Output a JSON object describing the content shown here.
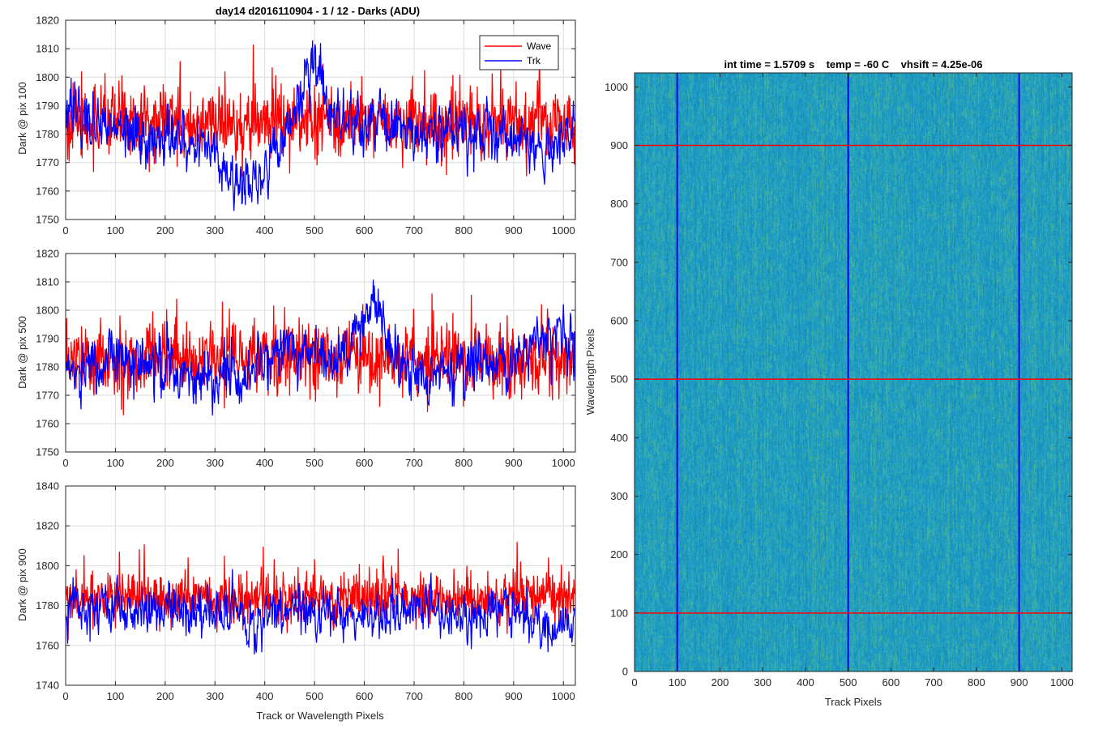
{
  "figure_title": "day14 d2016110904 - 1 / 12 - Darks (ADU)",
  "colors": {
    "wave": "#ff0000",
    "trk": "#0000ff",
    "grid": "#dcdcdc",
    "axis": "#262626"
  },
  "chart_data": [
    {
      "type": "line",
      "id": "panel-1",
      "ylabel": "Dark @ pix 100",
      "xlim": [
        0,
        1024
      ],
      "ylim": [
        1750,
        1820
      ],
      "xticks": [
        "0",
        "100",
        "200",
        "300",
        "400",
        "500",
        "600",
        "700",
        "800",
        "900",
        "1000"
      ],
      "yticks": [
        "1750",
        "1760",
        "1770",
        "1780",
        "1790",
        "1800",
        "1810",
        "1820"
      ],
      "grid": true,
      "legend": {
        "placement": "top-right",
        "entries": [
          "Wave",
          "Trk"
        ]
      },
      "series": [
        {
          "name": "Wave",
          "points": 1024,
          "mean": 1784,
          "noise_amp": 8,
          "trend": [
            [
              0,
              0
            ],
            [
              1024,
              0
            ]
          ]
        },
        {
          "name": "Trk",
          "points": 1024,
          "mean": 1783,
          "noise_amp": 5,
          "trend": [
            [
              0,
              4
            ],
            [
              100,
              0
            ],
            [
              160,
              -6
            ],
            [
              220,
              -4
            ],
            [
              280,
              -10
            ],
            [
              340,
              -20
            ],
            [
              390,
              -18
            ],
            [
              430,
              -6
            ],
            [
              470,
              8
            ],
            [
              500,
              22
            ],
            [
              530,
              10
            ],
            [
              560,
              2
            ],
            [
              640,
              0
            ],
            [
              700,
              -2
            ],
            [
              800,
              -2
            ],
            [
              900,
              -4
            ],
            [
              960,
              -8
            ],
            [
              1024,
              -2
            ]
          ]
        }
      ]
    },
    {
      "type": "line",
      "id": "panel-2",
      "ylabel": "Dark @ pix 500",
      "xlim": [
        0,
        1024
      ],
      "ylim": [
        1750,
        1820
      ],
      "xticks": [
        "0",
        "100",
        "200",
        "300",
        "400",
        "500",
        "600",
        "700",
        "800",
        "900",
        "1000"
      ],
      "yticks": [
        "1750",
        "1760",
        "1770",
        "1780",
        "1790",
        "1800",
        "1810",
        "1820"
      ],
      "grid": true,
      "series": [
        {
          "name": "Wave",
          "points": 1024,
          "mean": 1783,
          "noise_amp": 8,
          "trend": [
            [
              0,
              0
            ],
            [
              1024,
              0
            ]
          ]
        },
        {
          "name": "Trk",
          "points": 1024,
          "mean": 1781,
          "noise_amp": 5,
          "trend": [
            [
              0,
              -6
            ],
            [
              120,
              4
            ],
            [
              200,
              -2
            ],
            [
              300,
              -8
            ],
            [
              380,
              -4
            ],
            [
              440,
              6
            ],
            [
              520,
              0
            ],
            [
              580,
              8
            ],
            [
              620,
              22
            ],
            [
              660,
              4
            ],
            [
              720,
              -6
            ],
            [
              800,
              -2
            ],
            [
              880,
              2
            ],
            [
              950,
              8
            ],
            [
              1024,
              6
            ]
          ]
        }
      ]
    },
    {
      "type": "line",
      "id": "panel-3",
      "ylabel": "Dark @ pix 900",
      "xlabel": "Track or Wavelength Pixels",
      "xlim": [
        0,
        1024
      ],
      "ylim": [
        1740,
        1840
      ],
      "xticks": [
        "0",
        "100",
        "200",
        "300",
        "400",
        "500",
        "600",
        "700",
        "800",
        "900",
        "1000"
      ],
      "yticks": [
        "1740",
        "1760",
        "1780",
        "1800",
        "1820",
        "1840"
      ],
      "grid": true,
      "series": [
        {
          "name": "Wave",
          "points": 1024,
          "mean": 1784,
          "noise_amp": 8,
          "trend": [
            [
              0,
              0
            ],
            [
              1024,
              0
            ]
          ]
        },
        {
          "name": "Trk",
          "points": 1024,
          "mean": 1779,
          "noise_amp": 6,
          "trend": [
            [
              0,
              0
            ],
            [
              200,
              0
            ],
            [
              300,
              -2
            ],
            [
              380,
              -6
            ],
            [
              460,
              2
            ],
            [
              540,
              -4
            ],
            [
              620,
              -6
            ],
            [
              700,
              0
            ],
            [
              800,
              -4
            ],
            [
              900,
              -2
            ],
            [
              960,
              -10
            ],
            [
              1024,
              -6
            ]
          ]
        }
      ]
    },
    {
      "type": "heatmap",
      "id": "image-panel",
      "title": "int time = 1.5709 s    temp = -60 C    vhsift = 4.25e-06",
      "xlabel": "Track Pixels",
      "ylabel": "Wavelength Pixels",
      "xlim": [
        0,
        1024
      ],
      "ylim": [
        0,
        1024
      ],
      "xticks": [
        "0",
        "100",
        "200",
        "300",
        "400",
        "500",
        "600",
        "700",
        "800",
        "900",
        "1000"
      ],
      "yticks": [
        "0",
        "100",
        "200",
        "300",
        "400",
        "500",
        "600",
        "700",
        "800",
        "900",
        "1000"
      ],
      "vertical_markers": [
        100,
        500,
        900
      ],
      "horizontal_markers": [
        100,
        500,
        900
      ],
      "vertical_marker_color": "#0000ff",
      "horizontal_marker_color": "#ff0000",
      "base_color": "#1e9ec8",
      "highlight_color": "#52b890"
    }
  ]
}
